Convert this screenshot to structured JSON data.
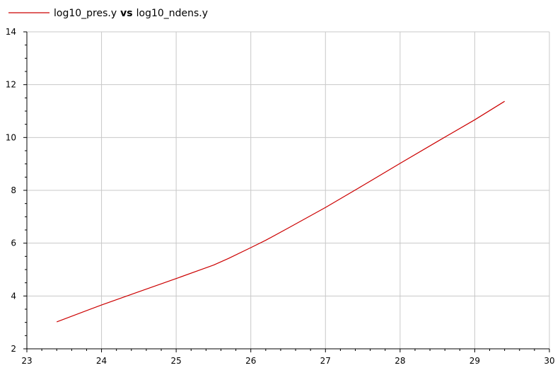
{
  "chart_data": {
    "type": "line",
    "legend": {
      "placement": "top-left",
      "y_name": "log10_pres.y",
      "connector": "vs",
      "x_name": "log10_ndens.y"
    },
    "xlim": [
      23,
      30
    ],
    "ylim": [
      2,
      14
    ],
    "x_ticks": [
      23,
      24,
      25,
      26,
      27,
      28,
      29,
      30
    ],
    "y_ticks": [
      2,
      4,
      6,
      8,
      10,
      12,
      14
    ],
    "grid": true,
    "colors": {
      "series": "#cc0000",
      "grid": "#c8c8c8",
      "axis": "#000000"
    },
    "series": [
      {
        "name": "log10_pres.y vs log10_ndens.y",
        "x": [
          23.4,
          24.0,
          24.5,
          25.0,
          25.5,
          25.7,
          26.0,
          26.2,
          26.5,
          27.0,
          27.5,
          28.0,
          28.5,
          29.0,
          29.4
        ],
        "y": [
          3.02,
          3.66,
          4.16,
          4.66,
          5.17,
          5.42,
          5.83,
          6.11,
          6.57,
          7.35,
          8.18,
          9.02,
          9.85,
          10.67,
          11.37
        ]
      }
    ]
  }
}
